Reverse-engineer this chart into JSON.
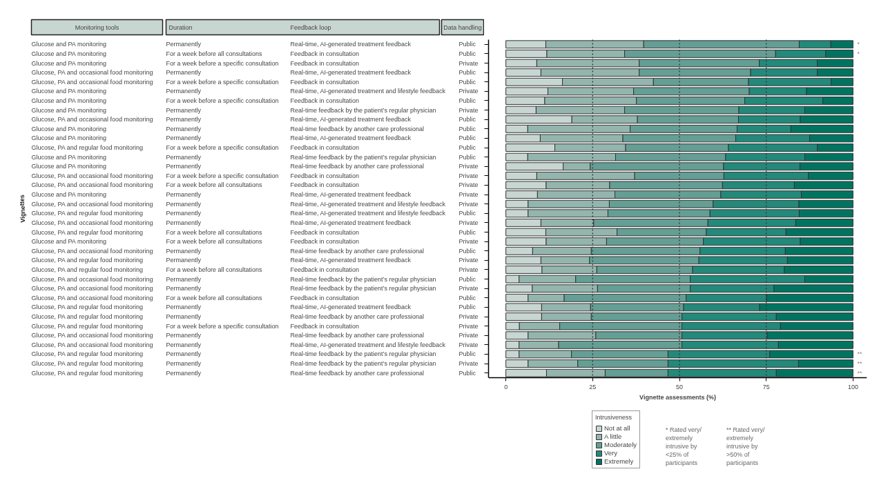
{
  "chart_data": [
    {
      "type": "other",
      "annotations": [
        "Monitoring tools",
        "Duration",
        "Feedback loop",
        "Data handling",
        "Glucose and PA monitoring",
        "Permanently",
        "Real-time, AI-generated treatment feedback",
        "Public",
        "Glucose and PA monitoring",
        "For a week before all consultations",
        "Feedback in consultation",
        "Public",
        "Glucose and PA monitoring",
        "For a week before a specific consultation",
        "Feedback in consultation",
        "Private",
        "Glucose, PA and occasional food monitoring",
        "Permanently",
        "Real-time, AI-generated treatment feedback",
        "Public",
        "Glucose, PA and occasional food monitoring",
        "For a week before a specific consultation",
        "Feedback in consultation",
        "Public",
        "Glucose and PA monitoring",
        "Permanently",
        "Real-time, AI-generated treatment and lifestyle feedback",
        "Private",
        "Glucose and PA monitoring",
        "For a week before a specific consultation",
        "Feedback in consultation",
        "Public",
        "Glucose and PA monitoring",
        "Permanently",
        "Real-time feedback by the patient’s regular physician",
        "Private",
        "Glucose, PA and occasional food monitoring",
        "Permanently",
        "Real-time, AI-generated treatment feedback",
        "Public",
        "Glucose and PA monitoring",
        "Permanently",
        "Real-time feedback by another care professional",
        "Public",
        "Glucose and PA monitoring",
        "Permanently",
        "Real-time, AI-generated treatment feedback",
        "Public",
        "Glucose, PA and regular food monitoring",
        "For a week before a specific consultation",
        "Feedback in consultation",
        "Public",
        "Glucose and PA monitoring",
        "Permanently",
        "Real-time feedback by the patient’s regular physician",
        "Public",
        "Glucose and PA monitoring",
        "Permanently",
        "Real-time feedback by another care professional",
        "Private",
        "Glucose, PA and occasional food monitoring",
        "For a week before a specific consultation",
        "Feedback in consultation",
        "Private",
        "Glucose, PA and occasional food monitoring",
        "For a week before all consultations",
        "Feedback in consultation",
        "Private",
        "Glucose and PA monitoring",
        "Permanently",
        "Real-time, AI-generated treatment feedback",
        "Private",
        "Glucose, PA and occasional food monitoring",
        "Permanently",
        "Real-time, AI-generated treatment and lifestyle feedback",
        "Private",
        "Glucose, PA and regular food monitoring",
        "Permanently",
        "Real-time, AI-generated treatment and lifestyle feedback",
        "Public",
        "Glucose, PA and occasional food monitoring",
        "Permanently",
        "Real-time, AI-generated treatment feedback",
        "Private",
        "Glucose, PA and regular food monitoring",
        "For a week before all consultations",
        "Feedback in consultation",
        "Public",
        "Glucose and PA monitoring",
        "For a week before all consultations",
        "Feedback in consultation",
        "Private",
        "Glucose, PA and occasional food monitoring",
        "Permanently",
        "Real-time feedback by another care professional",
        "Public",
        "Glucose, PA and regular food monitoring",
        "Permanently",
        "Real-time, AI-generated treatment feedback",
        "Private",
        "Glucose, PA and regular food monitoring",
        "For a week before all consultations",
        "Feedback in consultation",
        "Private",
        "Glucose, PA and occasional food monitoring",
        "Permanently",
        "Real-time feedback by the patient’s regular physician",
        "Public",
        "Glucose, PA and occasional food monitoring",
        "Permanently",
        "Real-time feedback by the patient’s regular physician",
        "Private",
        "Glucose, PA and occasional food monitoring",
        "For a week before all consultations",
        "Feedback in consultation",
        "Public",
        "Glucose, PA and regular food monitoring",
        "Permanently",
        "Real-time, AI-generated treatment feedback",
        "Public",
        "Glucose, PA and regular food monitoring",
        "Permanently",
        "Real-time feedback by another care professional",
        "Private",
        "Glucose, PA and regular food monitoring",
        "For a week before a specific consultation",
        "Feedback in consultation",
        "Private",
        "Glucose, PA and occasional food monitoring",
        "Permanently",
        "Real-time feedback by another care professional",
        "Private",
        "Glucose, PA and occasional food monitoring",
        "Permanently",
        "Real-time, AI-generated treatment and lifestyle feedback",
        "Private",
        "Glucose, PA and regular food monitoring",
        "Permanently",
        "Real-time feedback by the patient’s regular physician",
        "Public",
        "Glucose, PA and regular food monitoring",
        "Permanently",
        "Real-time feedback by the patient’s regular physician",
        "Private",
        "Glucose, PA and regular food monitoring",
        "Permanently",
        "Real-time feedback by another care professional",
        "Public"
      ]
    },
    {
      "type": "bar",
      "orientation": "horizontal",
      "stacked": true,
      "xlabel": "Vignette assessments (%)",
      "ylabel": "Vignettes",
      "legend_title": "Intrusiveness",
      "legend": "bottom",
      "categories": [
        null,
        null,
        null,
        null,
        null,
        null,
        null,
        null,
        null,
        null,
        null,
        null,
        null,
        null,
        null,
        null,
        null,
        null,
        null,
        null,
        null,
        null,
        null,
        null,
        null,
        null,
        null,
        null,
        null,
        null,
        null,
        null,
        null,
        null,
        null,
        null
      ],
      "xlim": [
        -5,
        104
      ],
      "xticks": [
        0,
        25,
        50,
        75,
        100
      ],
      "ref_lines": [
        {
          "axis": "x",
          "value": 25,
          "label": null,
          "color": "#333333",
          "line_style": "dotted"
        },
        {
          "axis": "x",
          "value": 50,
          "label": null,
          "color": "#333333",
          "line_style": "dotted"
        },
        {
          "axis": "x",
          "value": 75,
          "label": null,
          "color": "#333333",
          "line_style": "dotted"
        }
      ],
      "series": [
        {
          "name": "Not at all",
          "color": "#c8d6d2",
          "values": [
            11.5,
            11.8,
            8.9,
            10.1,
            16.3,
            12.1,
            11.2,
            8.7,
            19.0,
            6.3,
            9.9,
            14.1,
            6.3,
            16.5,
            8.9,
            11.6,
            9.1,
            6.4,
            6.4,
            10.1,
            11.5,
            11.6,
            7.7,
            10.1,
            10.4,
            3.8,
            7.6,
            6.4,
            10.3,
            10.3,
            3.9,
            6.4,
            3.8,
            3.8,
            6.4,
            11.7
          ]
        },
        {
          "name": "A little",
          "color": "#93b5ad",
          "values": [
            28.2,
            22.4,
            29.5,
            28.3,
            26.2,
            24.7,
            26.4,
            25.5,
            18.9,
            29.5,
            23.8,
            20.4,
            25.3,
            7.8,
            28.2,
            18.3,
            22.3,
            23.4,
            23.0,
            15.2,
            20.5,
            17.4,
            16.9,
            14.0,
            15.8,
            16.3,
            18.8,
            10.4,
            14.1,
            14.3,
            11.6,
            19.5,
            11.4,
            15.1,
            14.3,
            16.9
          ]
        },
        {
          "name": "Moderately",
          "color": "#649e94",
          "values": [
            44.8,
            43.5,
            34.6,
            32.1,
            27.4,
            33.3,
            31.2,
            32.9,
            29.1,
            30.8,
            32.5,
            29.6,
            31.7,
            38.4,
            25.7,
            32.5,
            30.5,
            29.9,
            29.4,
            32.9,
            25.7,
            27.9,
            31.3,
            31.5,
            27.6,
            33.0,
            26.7,
            35.1,
            26.8,
            26.1,
            35.2,
            24.8,
            35.5,
            27.8,
            26.0,
            18.1
          ]
        },
        {
          "name": "Very",
          "color": "#23897a",
          "values": [
            9.1,
            14.4,
            16.7,
            19.2,
            23.8,
            16.5,
            22.5,
            19.0,
            17.8,
            15.5,
            21.3,
            25.6,
            22.8,
            22.0,
            24.3,
            20.7,
            23.2,
            24.7,
            25.7,
            25.3,
            23.0,
            27.9,
            24.6,
            25.5,
            26.4,
            33.0,
            24.1,
            23.2,
            21.9,
            27.2,
            28.4,
            24.6,
            27.8,
            29.3,
            37.6,
            31.2
          ]
        },
        {
          "name": "Extremely",
          "color": "#007460",
          "values": [
            6.4,
            7.9,
            10.3,
            10.3,
            6.3,
            13.4,
            8.7,
            13.9,
            15.2,
            17.9,
            12.5,
            10.3,
            13.9,
            15.3,
            12.9,
            16.9,
            14.9,
            15.6,
            15.5,
            16.5,
            19.3,
            15.2,
            19.5,
            18.9,
            19.8,
            13.9,
            22.8,
            24.9,
            26.9,
            22.1,
            20.9,
            24.7,
            21.5,
            24.0,
            15.7,
            22.1
          ],
          "value_labels": [
            "*",
            "*",
            null,
            null,
            null,
            null,
            null,
            null,
            null,
            null,
            null,
            null,
            null,
            null,
            null,
            null,
            null,
            null,
            null,
            null,
            null,
            null,
            null,
            null,
            null,
            null,
            null,
            null,
            null,
            null,
            null,
            null,
            null,
            "**",
            "**",
            "**"
          ]
        }
      ],
      "annotations": [
        "* Rated very/\nextremely\nintrusive by\n<25% of\nparticipants",
        "** Rated very/\nextremely\nintrusive by\n>50% of\nparticipants"
      ]
    }
  ]
}
